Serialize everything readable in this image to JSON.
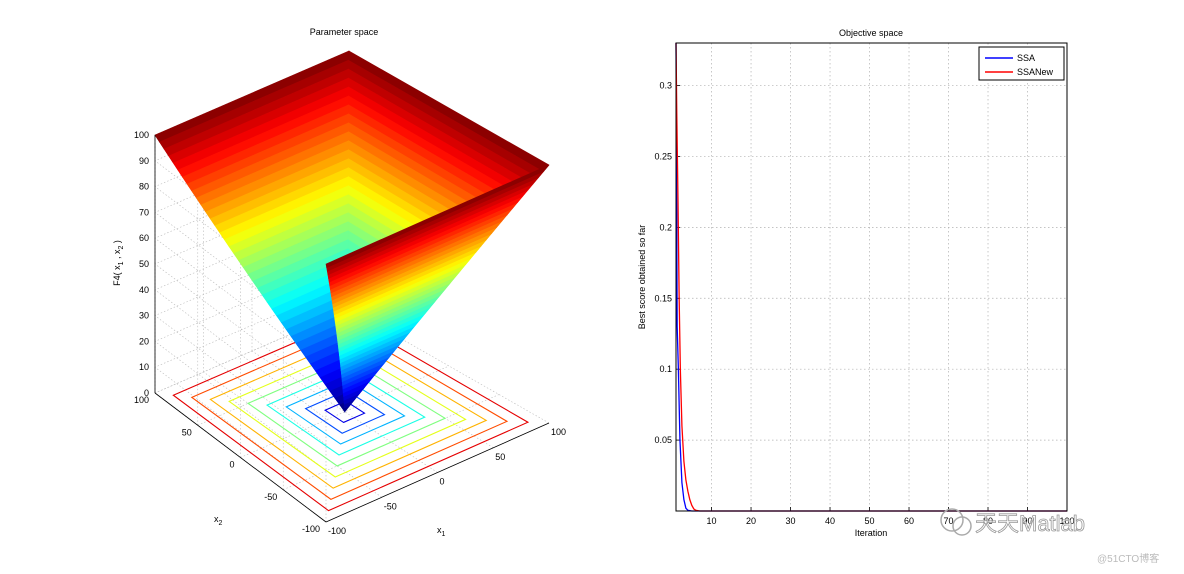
{
  "charts": [
    {
      "title": "Parameter space",
      "xlabel_base": "x",
      "xlabel_sub": "1",
      "ylabel_base": "x",
      "ylabel_sub": "2",
      "zlabel": "F4( x1 , x2 )",
      "z_ticks": [
        "0",
        "10",
        "20",
        "30",
        "40",
        "50",
        "60",
        "70",
        "80",
        "90",
        "100"
      ],
      "x_ticks": [
        "-100",
        "-50",
        "0",
        "50",
        "100"
      ],
      "y_ticks": [
        "-100",
        "-50",
        "0",
        "50",
        "100"
      ]
    },
    {
      "title": "Objective space",
      "xlabel": "Iteration",
      "ylabel": "Best score obtained so far",
      "x_ticks": [
        "10",
        "20",
        "30",
        "40",
        "50",
        "60",
        "70",
        "80",
        "90",
        "100"
      ],
      "y_ticks": [
        "0.05",
        "0.1",
        "0.15",
        "0.2",
        "0.25",
        "0.3"
      ]
    }
  ],
  "chart_data": [
    {
      "type": "surface",
      "title": "Parameter space",
      "function": "F4(x1,x2) = max(|x1|,|x2|)",
      "x_range": [
        -100,
        100
      ],
      "y_range": [
        -100,
        100
      ],
      "z_range": [
        0,
        100
      ],
      "contour_levels": [
        10,
        20,
        30,
        40,
        50,
        60,
        70,
        80,
        90
      ],
      "colormap": "jet",
      "grid": true
    },
    {
      "type": "line",
      "title": "Objective space",
      "xlabel": "Iteration",
      "ylabel": "Best score obtained so far",
      "xlim": [
        1,
        100
      ],
      "ylim": [
        0,
        0.33
      ],
      "grid": true,
      "legend_position": "top-right",
      "series": [
        {
          "name": "SSA",
          "color": "#0000ff",
          "x": [
            1,
            1.3,
            1.6,
            2,
            2.5,
            3,
            3.5,
            4,
            5,
            6,
            10,
            100
          ],
          "y": [
            0.33,
            0.13,
            0.1,
            0.05,
            0.02,
            0.008,
            0.002,
            0.0005,
            0,
            0,
            0,
            0
          ]
        },
        {
          "name": "SSANew",
          "color": "#ff0000",
          "x": [
            1,
            1.2,
            1.5,
            1.8,
            2.1,
            2.5,
            3,
            3.5,
            4,
            4.5,
            5,
            5.5,
            6,
            7,
            10,
            100
          ],
          "y": [
            0.33,
            0.28,
            0.22,
            0.15,
            0.1,
            0.06,
            0.035,
            0.022,
            0.014,
            0.008,
            0.004,
            0.0015,
            0.0005,
            0,
            0,
            0
          ]
        }
      ]
    }
  ],
  "watermarks": {
    "main": "天天Matlab",
    "source": "@51CTO博客"
  }
}
